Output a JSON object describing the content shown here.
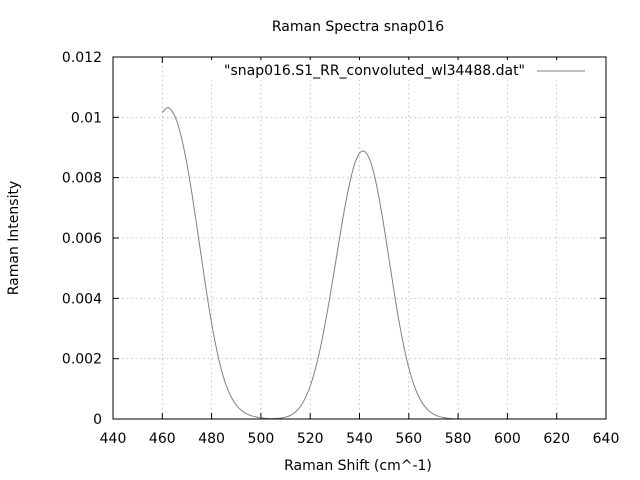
{
  "chart_data": {
    "type": "line",
    "title": "Raman Spectra snap016",
    "xlabel": "Raman Shift (cm^-1)",
    "ylabel": "Raman Intensity",
    "xlim": [
      440,
      640
    ],
    "ylim": [
      0,
      0.012
    ],
    "xticks": [
      "440",
      "460",
      "480",
      "500",
      "520",
      "540",
      "560",
      "580",
      "600",
      "620",
      "640"
    ],
    "yticks": [
      "0",
      "0.002",
      "0.004",
      "0.006",
      "0.008",
      "0.01",
      "0.012"
    ],
    "grid": true,
    "legend_position": "top-right",
    "series": [
      {
        "name": "\"snap016.S1_RR_convoluted_wl34488.dat\"",
        "color": "#808080",
        "points": [
          [
            460,
            0.01015
          ],
          [
            462,
            0.01032
          ],
          [
            464,
            0.0102
          ],
          [
            466,
            0.00985
          ],
          [
            468,
            0.00925
          ],
          [
            470,
            0.00845
          ],
          [
            472,
            0.00748
          ],
          [
            474,
            0.0064
          ],
          [
            476,
            0.00528
          ],
          [
            478,
            0.00418
          ],
          [
            480,
            0.00318
          ],
          [
            482,
            0.00232
          ],
          [
            484,
            0.00162
          ],
          [
            486,
            0.0011
          ],
          [
            488,
            0.00072
          ],
          [
            490,
            0.00046
          ],
          [
            492,
            0.00029
          ],
          [
            494,
            0.00018
          ],
          [
            496,
            0.00011
          ],
          [
            498,
            7e-05
          ],
          [
            500,
            4e-05
          ],
          [
            502,
            2e-05
          ],
          [
            504,
            1e-05
          ],
          [
            506,
            2e-05
          ],
          [
            508,
            3e-05
          ],
          [
            510,
            6e-05
          ],
          [
            512,
            0.00012
          ],
          [
            514,
            0.00023
          ],
          [
            516,
            0.00041
          ],
          [
            518,
            0.00069
          ],
          [
            520,
            0.00109
          ],
          [
            522,
            0.00163
          ],
          [
            524,
            0.00231
          ],
          [
            526,
            0.00313
          ],
          [
            528,
            0.00405
          ],
          [
            530,
            0.00504
          ],
          [
            532,
            0.00604
          ],
          [
            534,
            0.00699
          ],
          [
            536,
            0.00781
          ],
          [
            538,
            0.00845
          ],
          [
            540,
            0.00881
          ],
          [
            542,
            0.00887
          ],
          [
            544,
            0.00863
          ],
          [
            546,
            0.00809
          ],
          [
            548,
            0.0073
          ],
          [
            550,
            0.00634
          ],
          [
            552,
            0.00529
          ],
          [
            554,
            0.00424
          ],
          [
            556,
            0.00325
          ],
          [
            558,
            0.0024
          ],
          [
            560,
            0.00169
          ],
          [
            562,
            0.00115
          ],
          [
            564,
            0.00075
          ],
          [
            566,
            0.00047
          ],
          [
            568,
            0.00028
          ],
          [
            570,
            0.00016
          ],
          [
            572,
            9e-05
          ],
          [
            574,
            5e-05
          ],
          [
            576,
            2e-05
          ],
          [
            578,
            1e-05
          ],
          [
            580,
            0.0
          ],
          [
            595,
            0.0
          ]
        ]
      }
    ]
  }
}
